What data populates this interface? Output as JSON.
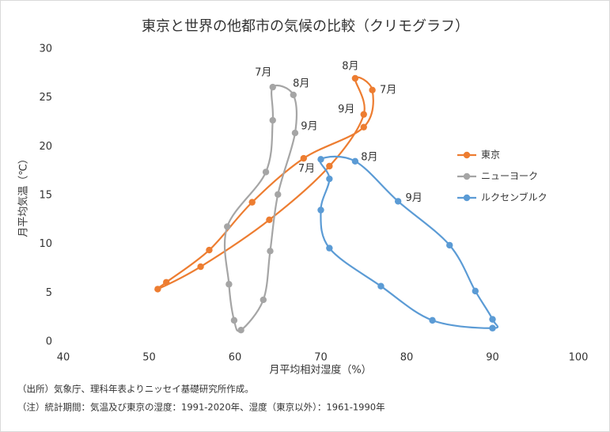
{
  "chart_data": {
    "type": "scatter",
    "title": "東京と世界の他都市の気候の比較（クリモグラフ）",
    "x_label": "月平均相対湿度（%）",
    "y_label": "月平均気温（℃）",
    "xlim": [
      40,
      100
    ],
    "xticks": [
      40,
      50,
      60,
      70,
      80,
      90,
      100
    ],
    "ylim": [
      0,
      30
    ],
    "yticks": [
      0,
      5,
      10,
      15,
      20,
      25,
      30
    ],
    "grid": false,
    "legend": "right",
    "closed_loop": true,
    "series": [
      {
        "name": "東京",
        "color": "#ed7d31",
        "x": [
          51,
          52,
          57,
          62,
          68,
          75,
          76,
          74,
          75,
          71,
          64,
          56
        ],
        "values": [
          5.4,
          6.1,
          9.4,
          14.3,
          18.8,
          22.0,
          25.8,
          27.0,
          23.3,
          18.0,
          12.5,
          7.7
        ],
        "point_labels": [
          null,
          null,
          null,
          null,
          null,
          null,
          "7月",
          "8月",
          "9月",
          null,
          null,
          null
        ]
      },
      {
        "name": "ニューヨーク",
        "color": "#a5a5a5",
        "x": [
          60.7,
          59.9,
          59.3,
          59.1,
          63.6,
          64.4,
          64.4,
          66.8,
          67,
          65,
          64.1,
          63.3
        ],
        "values": [
          1.2,
          2.2,
          5.9,
          11.8,
          17.4,
          22.7,
          26.1,
          25.3,
          21.4,
          15.1,
          9.3,
          4.3
        ],
        "point_labels": [
          null,
          null,
          null,
          null,
          null,
          null,
          "7月",
          "8月",
          "9月",
          null,
          null,
          null
        ]
      },
      {
        "name": "ルクセンブルク",
        "color": "#5b9bd5",
        "x": [
          90,
          83,
          77,
          71,
          70,
          71,
          70,
          74,
          79,
          85,
          88,
          90
        ],
        "values": [
          1.4,
          2.2,
          5.7,
          9.6,
          13.5,
          16.7,
          18.7,
          18.5,
          14.4,
          9.9,
          5.2,
          2.3
        ],
        "point_labels": [
          null,
          null,
          null,
          null,
          null,
          null,
          "7月",
          "8月",
          "9月",
          null,
          null,
          null
        ]
      }
    ],
    "notes": [
      "（出所）気象庁、理科年表よりニッセイ基礎研究所作成。",
      "（注）統計期間：気温及び東京の湿度：1991-2020年、湿度（東京以外）：1961-1990年"
    ]
  }
}
